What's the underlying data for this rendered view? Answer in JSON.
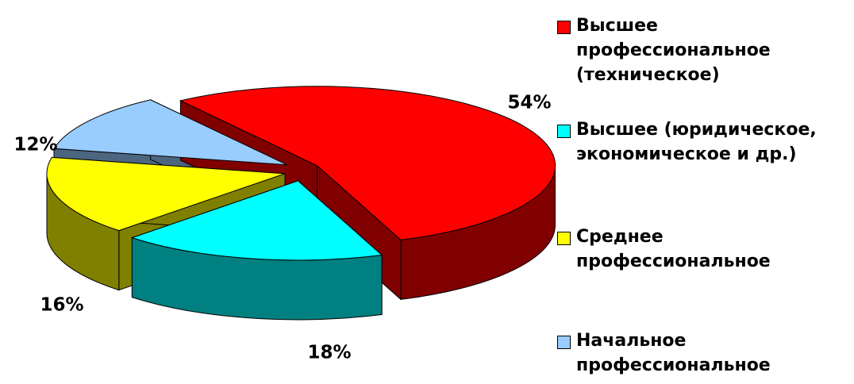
{
  "chart_data": {
    "type": "pie3d",
    "categories": [
      "Высшее профессиональное (техническое)",
      "Высшее (юридическое, экономическое и др.)",
      "Среднее профессиональное",
      "Начальное профессиональное"
    ],
    "values": [
      54,
      18,
      16,
      12
    ],
    "value_labels": [
      "54%",
      "18%",
      "16%",
      "12%"
    ],
    "colors": [
      "#ff0000",
      "#00ffff",
      "#ffff00",
      "#99ccff"
    ],
    "side_colors": [
      "#800000",
      "#008080",
      "#808000",
      "#4d6680"
    ],
    "legend": "right"
  }
}
